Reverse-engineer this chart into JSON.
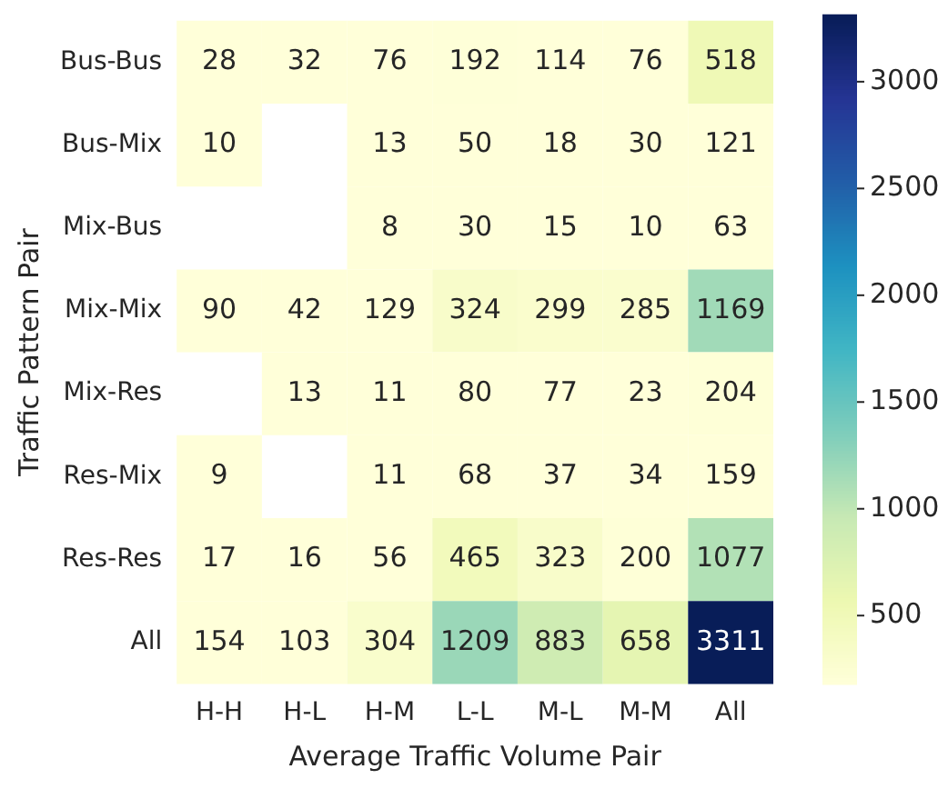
{
  "chart_data": {
    "type": "heatmap",
    "xlabel": "Average Traffic Volume Pair",
    "ylabel": "Traffic Pattern Pair",
    "categories": [
      "H-H",
      "H-L",
      "H-M",
      "L-L",
      "M-L",
      "M-M",
      "All"
    ],
    "y_categories": [
      "Bus-Bus",
      "Bus-Mix",
      "Mix-Bus",
      "Mix-Mix",
      "Mix-Res",
      "Res-Mix",
      "Res-Res",
      "All"
    ],
    "cells": [
      [
        28,
        32,
        76,
        192,
        114,
        76,
        518
      ],
      [
        10,
        null,
        13,
        50,
        18,
        30,
        121
      ],
      [
        null,
        null,
        8,
        30,
        15,
        10,
        63
      ],
      [
        90,
        42,
        129,
        324,
        299,
        285,
        1169
      ],
      [
        null,
        13,
        11,
        80,
        77,
        23,
        204
      ],
      [
        9,
        null,
        11,
        68,
        37,
        34,
        159
      ],
      [
        17,
        16,
        56,
        465,
        323,
        200,
        1077
      ],
      [
        154,
        103,
        304,
        1209,
        883,
        658,
        3311
      ]
    ],
    "clim": [
      180,
      3311
    ],
    "cticks": [
      500,
      1000,
      1500,
      2000,
      2500,
      3000
    ],
    "data_labels": true
  }
}
